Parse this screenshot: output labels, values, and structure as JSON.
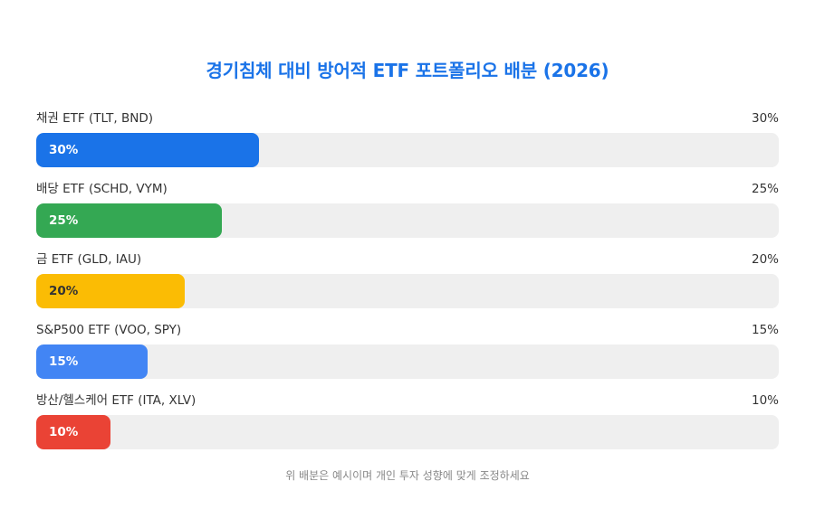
{
  "chart_data": {
    "type": "bar",
    "orientation": "horizontal",
    "title": "경기침체 대비 방어적 ETF 포트폴리오 배분 (2026)",
    "categories": [
      "채권 ETF (TLT, BND)",
      "배당 ETF (SCHD, VYM)",
      "금 ETF (GLD, IAU)",
      "S&P500 ETF (VOO, SPY)",
      "방산/헬스케어 ETF (ITA, XLV)"
    ],
    "values": [
      30,
      25,
      20,
      15,
      10
    ],
    "unit": "%",
    "colors": [
      "#1a73e8",
      "#34a853",
      "#fbbc04",
      "#4285f4",
      "#ea4335"
    ],
    "xlim": [
      0,
      100
    ],
    "grid": false,
    "legend": "none",
    "annotation": "위 배분은 예시이며 개인 투자 성향에 맞게 조정하세요"
  },
  "header": {
    "title": "경기침체 대비 방어적 ETF 포트폴리오 배분 (2026)"
  },
  "rows": [
    {
      "label": "채권 ETF (TLT, BND)",
      "value_text": "30%",
      "bar_text": "30%",
      "pct": 30,
      "color": "#1a73e8"
    },
    {
      "label": "배당 ETF (SCHD, VYM)",
      "value_text": "25%",
      "bar_text": "25%",
      "pct": 25,
      "color": "#34a853"
    },
    {
      "label": "금 ETF (GLD, IAU)",
      "value_text": "20%",
      "bar_text": "20%",
      "pct": 20,
      "color": "#fbbc04"
    },
    {
      "label": "S&P500 ETF (VOO, SPY)",
      "value_text": "15%",
      "bar_text": "15%",
      "pct": 15,
      "color": "#4285f4"
    },
    {
      "label": "방산/헬스케어 ETF (ITA, XLV)",
      "value_text": "10%",
      "bar_text": "10%",
      "pct": 10,
      "color": "#ea4335"
    }
  ],
  "footer": {
    "note": "위 배분은 예시이며 개인 투자 성향에 맞게 조정하세요"
  }
}
